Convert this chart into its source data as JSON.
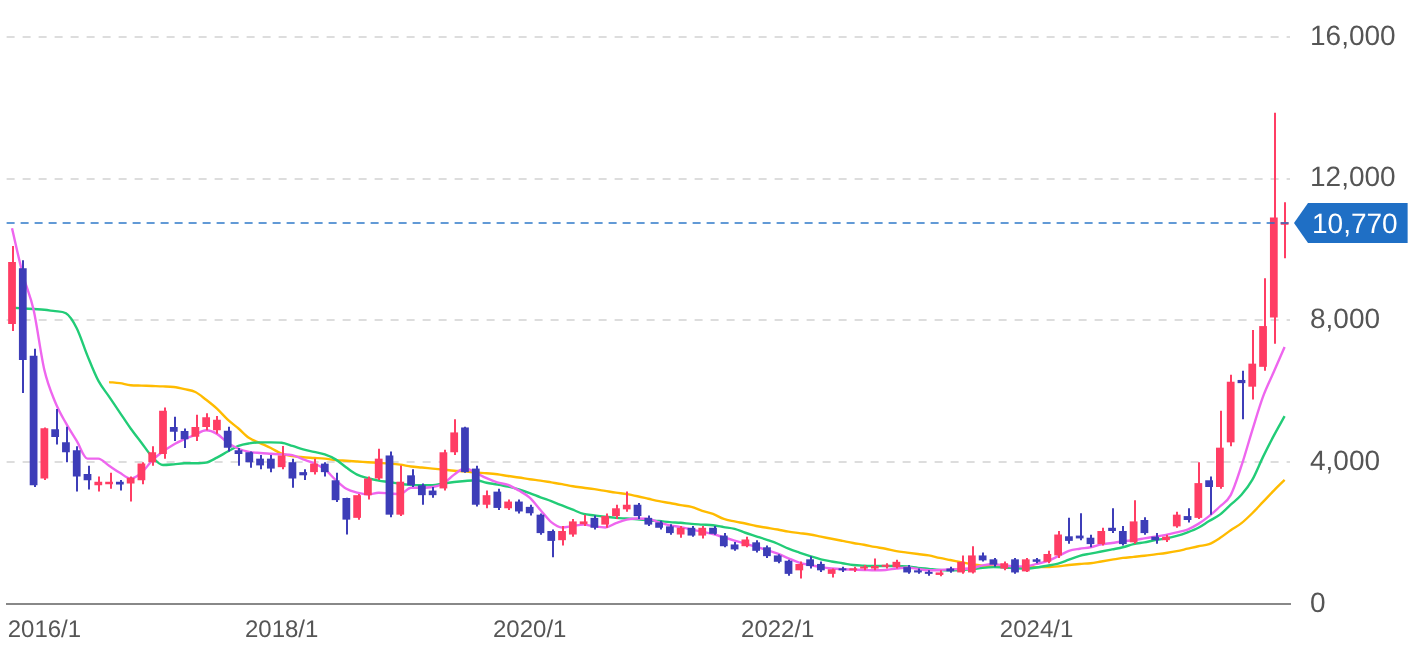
{
  "chart_data": {
    "type": "candlestick",
    "categories": [
      null,
      null,
      null,
      "2016/1",
      null,
      null,
      null,
      null,
      null,
      null,
      null,
      null,
      null,
      null,
      null,
      null,
      null,
      null,
      null,
      null,
      null,
      null,
      null,
      null,
      null,
      "2018/1",
      null,
      null,
      null,
      null,
      null,
      null,
      null,
      null,
      null,
      null,
      null,
      null,
      null,
      null,
      null,
      null,
      null,
      null,
      null,
      null,
      null,
      null,
      "2020/1",
      null,
      null,
      null,
      null,
      null,
      null,
      null,
      null,
      null,
      null,
      null,
      null,
      null,
      null,
      null,
      null,
      null,
      null,
      null,
      null,
      null,
      null,
      "2022/1",
      null,
      null,
      null,
      null,
      null,
      null,
      null,
      null,
      null,
      null,
      null,
      null,
      null,
      null,
      null,
      null,
      null,
      null,
      null,
      null,
      null,
      null,
      null,
      "2024/1",
      null,
      null,
      null,
      null,
      null,
      null,
      null,
      null,
      null,
      null,
      null,
      null,
      null,
      null,
      null,
      null,
      null,
      null,
      null,
      null,
      null,
      null,
      null
    ],
    "ohlc": [
      [
        7900,
        10100,
        7700,
        9650
      ],
      [
        9470,
        9700,
        5950,
        6880
      ],
      [
        7000,
        7200,
        3300,
        3350
      ],
      [
        3540,
        4980,
        3500,
        4960
      ],
      [
        4930,
        5500,
        4500,
        4710
      ],
      [
        4560,
        5000,
        4000,
        4280
      ],
      [
        4340,
        4450,
        3170,
        3600
      ],
      [
        3670,
        3900,
        3230,
        3490
      ],
      [
        3350,
        3600,
        3170,
        3450
      ],
      [
        3380,
        3700,
        3250,
        3450
      ],
      [
        3450,
        3500,
        3200,
        3370
      ],
      [
        3400,
        3600,
        2890,
        3560
      ],
      [
        3490,
        4000,
        3380,
        3960
      ],
      [
        4000,
        4450,
        3900,
        4280
      ],
      [
        4230,
        5540,
        4100,
        5450
      ],
      [
        4990,
        5280,
        4600,
        4860
      ],
      [
        4880,
        4950,
        4400,
        4650
      ],
      [
        4720,
        5340,
        4600,
        4990
      ],
      [
        4990,
        5380,
        4900,
        5270
      ],
      [
        4900,
        5300,
        4800,
        5200
      ],
      [
        4890,
        5000,
        4300,
        4410
      ],
      [
        4340,
        4400,
        3900,
        4230
      ],
      [
        4280,
        4300,
        3840,
        4000
      ],
      [
        4100,
        4200,
        3800,
        3910
      ],
      [
        4100,
        4200,
        3720,
        3820
      ],
      [
        3860,
        4460,
        3800,
        4190
      ],
      [
        4000,
        4100,
        3280,
        3540
      ],
      [
        3720,
        3800,
        3500,
        3630
      ],
      [
        3720,
        4100,
        3650,
        3960
      ],
      [
        3960,
        4000,
        3600,
        3720
      ],
      [
        3490,
        3700,
        2880,
        2930
      ],
      [
        2990,
        3000,
        1960,
        2380
      ],
      [
        2430,
        3100,
        2380,
        3070
      ],
      [
        3070,
        3600,
        2950,
        3540
      ],
      [
        3540,
        4380,
        3500,
        4100
      ],
      [
        4190,
        4300,
        2450,
        2520
      ],
      [
        2520,
        3910,
        2480,
        3450
      ],
      [
        3630,
        3800,
        3300,
        3350
      ],
      [
        3350,
        3400,
        2800,
        3070
      ],
      [
        3200,
        3300,
        3000,
        3070
      ],
      [
        3260,
        4350,
        3200,
        4280
      ],
      [
        4280,
        5210,
        4200,
        4840
      ],
      [
        4980,
        5000,
        3700,
        3720
      ],
      [
        3820,
        3900,
        2750,
        2800
      ],
      [
        2800,
        3200,
        2700,
        3070
      ],
      [
        3170,
        3250,
        2650,
        2710
      ],
      [
        2700,
        2950,
        2650,
        2890
      ],
      [
        2890,
        2950,
        2550,
        2610
      ],
      [
        2740,
        2800,
        2500,
        2560
      ],
      [
        2520,
        2550,
        1950,
        2000
      ],
      [
        2060,
        2100,
        1320,
        1780
      ],
      [
        1800,
        2200,
        1650,
        2060
      ],
      [
        1960,
        2400,
        1900,
        2330
      ],
      [
        2250,
        2520,
        2200,
        2330
      ],
      [
        2430,
        2500,
        2100,
        2150
      ],
      [
        2240,
        2550,
        2150,
        2480
      ],
      [
        2480,
        2800,
        2400,
        2700
      ],
      [
        2670,
        3170,
        2600,
        2800
      ],
      [
        2800,
        2850,
        2400,
        2480
      ],
      [
        2430,
        2500,
        2200,
        2240
      ],
      [
        2300,
        2350,
        2100,
        2150
      ],
      [
        2190,
        2250,
        1950,
        2000
      ],
      [
        1960,
        2200,
        1870,
        2150
      ],
      [
        2150,
        2200,
        1900,
        1930
      ],
      [
        1930,
        2200,
        1850,
        2150
      ],
      [
        2150,
        2200,
        1950,
        1980
      ],
      [
        1930,
        2000,
        1600,
        1630
      ],
      [
        1680,
        1750,
        1500,
        1540
      ],
      [
        1630,
        1900,
        1600,
        1820
      ],
      [
        1740,
        1800,
        1450,
        1500
      ],
      [
        1600,
        1650,
        1300,
        1350
      ],
      [
        1370,
        1400,
        1150,
        1190
      ],
      [
        1220,
        1250,
        800,
        850
      ],
      [
        950,
        1200,
        720,
        1130
      ],
      [
        1260,
        1350,
        1000,
        1070
      ],
      [
        1130,
        1200,
        900,
        950
      ],
      [
        850,
        1000,
        750,
        980
      ],
      [
        1000,
        1050,
        900,
        950
      ],
      [
        950,
        1050,
        900,
        1000
      ],
      [
        1000,
        1100,
        950,
        1050
      ],
      [
        1000,
        1280,
        950,
        1070
      ],
      [
        1050,
        1150,
        1000,
        1100
      ],
      [
        1040,
        1250,
        1000,
        1190
      ],
      [
        1040,
        1100,
        850,
        890
      ],
      [
        950,
        1000,
        850,
        890
      ],
      [
        900,
        950,
        800,
        850
      ],
      [
        820,
        950,
        780,
        890
      ],
      [
        1000,
        1050,
        880,
        920
      ],
      [
        890,
        1370,
        850,
        1190
      ],
      [
        890,
        1630,
        860,
        1370
      ],
      [
        1370,
        1450,
        1200,
        1230
      ],
      [
        1260,
        1300,
        1050,
        1110
      ],
      [
        1000,
        1200,
        950,
        1150
      ],
      [
        1260,
        1300,
        850,
        890
      ],
      [
        920,
        1300,
        900,
        1260
      ],
      [
        1260,
        1300,
        1150,
        1190
      ],
      [
        1190,
        1500,
        1150,
        1410
      ],
      [
        1370,
        2060,
        1300,
        1960
      ],
      [
        1910,
        2430,
        1700,
        1780
      ],
      [
        1930,
        2560,
        1800,
        1850
      ],
      [
        1870,
        1950,
        1600,
        1690
      ],
      [
        1690,
        2150,
        1650,
        2060
      ],
      [
        2150,
        2700,
        2000,
        2060
      ],
      [
        2060,
        2200,
        1650,
        1690
      ],
      [
        1740,
        2930,
        1700,
        2330
      ],
      [
        2370,
        2450,
        1950,
        2000
      ],
      [
        1900,
        2000,
        1700,
        1800
      ],
      [
        1800,
        1950,
        1750,
        1900
      ],
      [
        2190,
        2600,
        2150,
        2520
      ],
      [
        2480,
        2700,
        2300,
        2370
      ],
      [
        2430,
        4000,
        2400,
        3410
      ],
      [
        3490,
        3600,
        2520,
        3300
      ],
      [
        3300,
        5450,
        3250,
        4410
      ],
      [
        4560,
        6470,
        4450,
        6270
      ],
      [
        6320,
        6580,
        5210,
        6230
      ],
      [
        6130,
        7730,
        5770,
        6780
      ],
      [
        6690,
        9190,
        6580,
        7840
      ],
      [
        8080,
        13860,
        7340,
        10900
      ],
      [
        10700,
        11330,
        9750,
        10770
      ]
    ],
    "colors": [
      "#ff3d64",
      "#3d3db8",
      "#3d3db8",
      "#ff3d64",
      "#3d3db8",
      "#3d3db8",
      "#3d3db8",
      "#3d3db8",
      "#ff3d64",
      "#ff3d64",
      "#3d3db8",
      "#ff3d64",
      "#ff3d64",
      "#ff3d64",
      "#ff3d64",
      "#3d3db8",
      "#3d3db8",
      "#ff3d64",
      "#ff3d64",
      "#ff3d64",
      "#3d3db8",
      "#3d3db8",
      "#3d3db8",
      "#3d3db8",
      "#3d3db8",
      "#ff3d64",
      "#3d3db8",
      "#3d3db8",
      "#ff3d64",
      "#3d3db8",
      "#3d3db8",
      "#3d3db8",
      "#ff3d64",
      "#ff3d64",
      "#ff3d64",
      "#3d3db8",
      "#ff3d64",
      "#3d3db8",
      "#3d3db8",
      "#3d3db8",
      "#ff3d64",
      "#ff3d64",
      "#3d3db8",
      "#3d3db8",
      "#ff3d64",
      "#3d3db8",
      "#ff3d64",
      "#3d3db8",
      "#3d3db8",
      "#3d3db8",
      "#3d3db8",
      "#ff3d64",
      "#ff3d64",
      "#ff3d64",
      "#3d3db8",
      "#ff3d64",
      "#ff3d64",
      "#ff3d64",
      "#3d3db8",
      "#3d3db8",
      "#3d3db8",
      "#3d3db8",
      "#ff3d64",
      "#3d3db8",
      "#ff3d64",
      "#3d3db8",
      "#3d3db8",
      "#3d3db8",
      "#ff3d64",
      "#3d3db8",
      "#3d3db8",
      "#3d3db8",
      "#3d3db8",
      "#ff3d64",
      "#3d3db8",
      "#3d3db8",
      "#ff3d64",
      "#3d3db8",
      "#ff3d64",
      "#ff3d64",
      "#ff3d64",
      "#ff3d64",
      "#ff3d64",
      "#3d3db8",
      "#3d3db8",
      "#3d3db8",
      "#ff3d64",
      "#3d3db8",
      "#ff3d64",
      "#ff3d64",
      "#3d3db8",
      "#3d3db8",
      "#ff3d64",
      "#3d3db8",
      "#ff3d64",
      "#3d3db8",
      "#ff3d64",
      "#ff3d64",
      "#3d3db8",
      "#3d3db8",
      "#3d3db8",
      "#ff3d64",
      "#3d3db8",
      "#3d3db8",
      "#ff3d64",
      "#3d3db8",
      "#3d3db8",
      "#ff3d64",
      "#ff3d64",
      "#3d3db8",
      "#ff3d64",
      "#3d3db8",
      "#ff3d64",
      "#ff3d64",
      "#3d3db8",
      "#ff3d64",
      "#ff3d64",
      "#ff3d64",
      "#ff3d64"
    ],
    "series": [
      {
        "type": "line",
        "color": "#ee66ee",
        "values": [
          10600,
          9300,
          8300,
          6600,
          5700,
          5100,
          4600,
          4100,
          4100,
          3900,
          3700,
          3540,
          3700,
          4050,
          4300,
          4500,
          4650,
          4780,
          4900,
          4800,
          4550,
          4380,
          4290,
          4260,
          4240,
          4220,
          4200,
          4080,
          3970,
          3800,
          3500,
          3250,
          3140,
          3090,
          3140,
          3120,
          3100,
          3280,
          3280,
          3300,
          3400,
          3650,
          3830,
          3700,
          3550,
          3430,
          3360,
          3200,
          3000,
          2650,
          2310,
          2160,
          2200,
          2240,
          2190,
          2160,
          2280,
          2380,
          2410,
          2400,
          2300,
          2220,
          2170,
          2100,
          2040,
          1970,
          1880,
          1790,
          1700,
          1610,
          1520,
          1420,
          1290,
          1170,
          1100,
          1040,
          1000,
          980,
          970,
          960,
          950,
          960,
          1000,
          1030,
          990,
          950,
          960,
          980,
          990,
          1010,
          1090,
          1120,
          1090,
          1060,
          1060,
          1130,
          1210,
          1350,
          1500,
          1560,
          1600,
          1680,
          1720,
          1770,
          1800,
          1850,
          1900,
          1950,
          2020,
          2100,
          2260,
          2480,
          2750,
          3070,
          3900,
          4900,
          5850,
          6550,
          7250
        ]
      },
      {
        "type": "line",
        "color": "#22cc77",
        "values": [
          8360,
          8340,
          8320,
          8300,
          8260,
          8200,
          7780,
          7000,
          6300,
          5850,
          5400,
          4950,
          4550,
          4150,
          3920,
          3940,
          3970,
          3970,
          3990,
          4130,
          4300,
          4460,
          4530,
          4560,
          4560,
          4550,
          4460,
          4360,
          4290,
          4220,
          4080,
          3850,
          3650,
          3550,
          3480,
          3440,
          3390,
          3360,
          3350,
          3350,
          3400,
          3440,
          3470,
          3490,
          3420,
          3370,
          3310,
          3230,
          3130,
          3010,
          2900,
          2780,
          2660,
          2540,
          2500,
          2460,
          2430,
          2410,
          2390,
          2360,
          2340,
          2310,
          2290,
          2260,
          2240,
          2220,
          2170,
          2120,
          2010,
          1910,
          1810,
          1700,
          1560,
          1450,
          1350,
          1260,
          1200,
          1150,
          1100,
          1080,
          1070,
          1070,
          1070,
          1060,
          1020,
          990,
          960,
          950,
          960,
          980,
          1020,
          1040,
          1030,
          1010,
          1000,
          1030,
          1080,
          1140,
          1250,
          1360,
          1420,
          1480,
          1540,
          1600,
          1690,
          1740,
          1800,
          1850,
          1920,
          2020,
          2150,
          2340,
          2520,
          2800,
          3080,
          3500,
          4150,
          4750,
          5300
        ]
      },
      {
        "type": "line",
        "color": "#ffbb00",
        "values": [
          null,
          null,
          null,
          null,
          null,
          null,
          null,
          null,
          null,
          6260,
          6230,
          6170,
          6160,
          6150,
          6140,
          6120,
          6060,
          5980,
          5760,
          5510,
          5200,
          4950,
          4680,
          4540,
          4400,
          4240,
          4170,
          4140,
          4120,
          4100,
          4060,
          4040,
          4020,
          4000,
          3980,
          3960,
          3930,
          3880,
          3850,
          3820,
          3790,
          3760,
          3740,
          3710,
          3690,
          3660,
          3610,
          3570,
          3520,
          3480,
          3430,
          3380,
          3320,
          3280,
          3240,
          3190,
          3140,
          3100,
          3040,
          2970,
          2900,
          2850,
          2790,
          2740,
          2630,
          2540,
          2400,
          2330,
          2270,
          2200,
          2150,
          2100,
          2040,
          2000,
          1960,
          1900,
          1840,
          1780,
          1720,
          1670,
          1610,
          1560,
          1490,
          1450,
          1410,
          1370,
          1300,
          1240,
          1180,
          1120,
          1080,
          1060,
          1050,
          1040,
          1040,
          1040,
          1040,
          1060,
          1100,
          1130,
          1150,
          1200,
          1250,
          1300,
          1330,
          1360,
          1400,
          1440,
          1490,
          1560,
          1630,
          1690,
          1860,
          2080,
          2280,
          2560,
          2880,
          3200,
          3500
        ]
      }
    ],
    "ylim": [
      0,
      16000
    ],
    "yticks": [
      0,
      {
        "value": 4000,
        "label": "4,000"
      },
      {
        "value": 8000,
        "label": "8,000"
      },
      {
        "value": 12000,
        "label": "12,000"
      },
      {
        "value": 16000,
        "label": "16,000"
      }
    ],
    "grid": "y",
    "ref_lines": [
      {
        "axis": "y",
        "value": 10770,
        "label": "10,770",
        "color": "#1f6fc5",
        "line_style": "dashed"
      }
    ]
  }
}
